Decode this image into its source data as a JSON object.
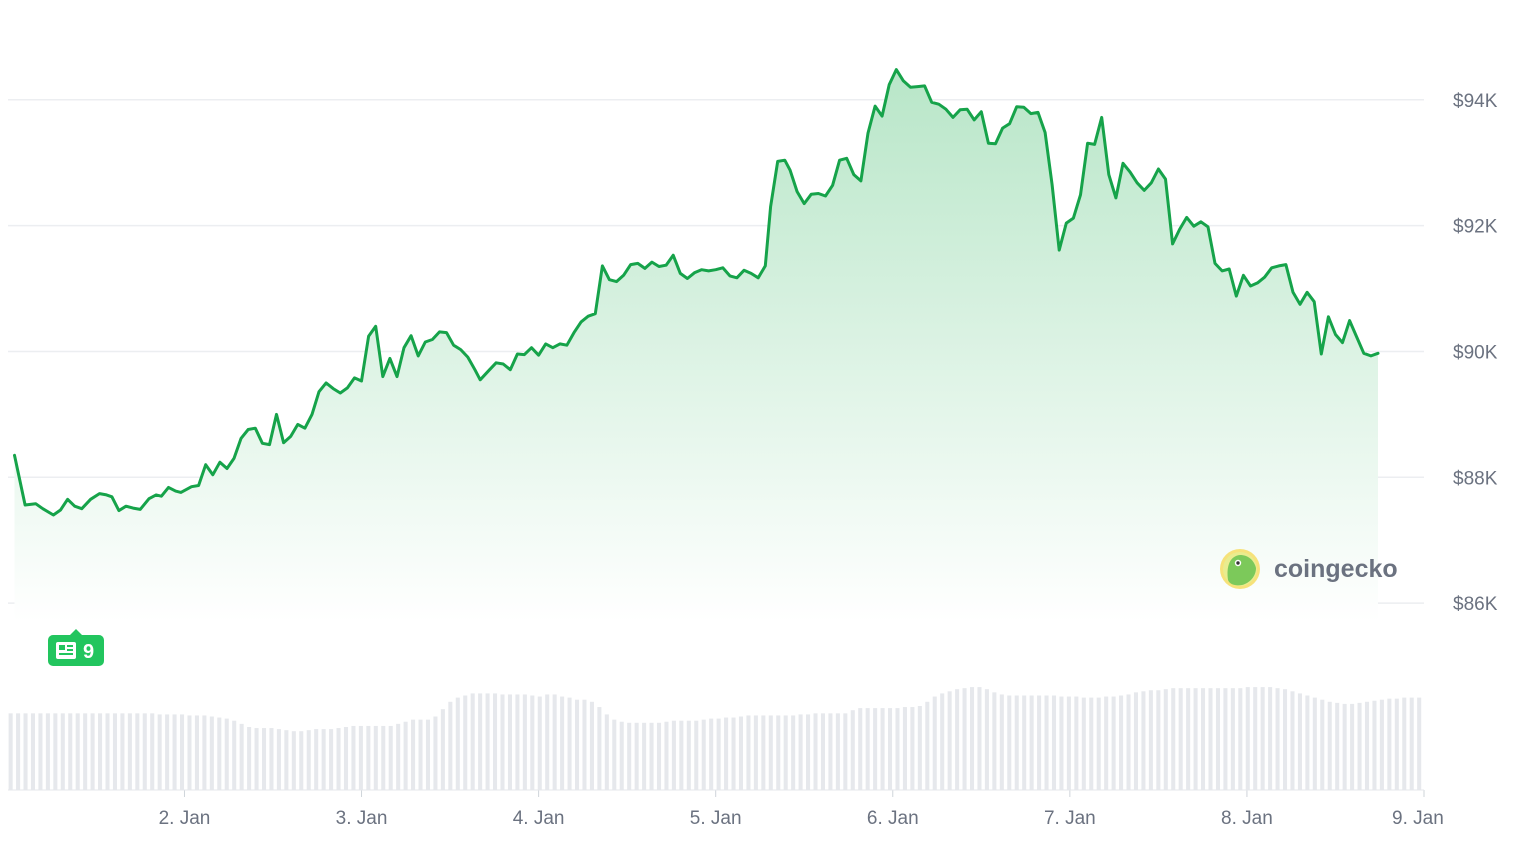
{
  "brand": {
    "name": "coingecko",
    "icon": "gecko-logo-icon"
  },
  "news_marker": {
    "icon": "newspaper-icon",
    "count": "9",
    "color": "#22c55e"
  },
  "colors": {
    "line": "#16a34a",
    "fill_top": "#b8e6c8",
    "fill_bottom": "#ffffff",
    "grid": "#eceef1",
    "volume": "#e6e8ec",
    "tick_text": "#6b7280"
  },
  "chart_data": {
    "type": "area",
    "title": "",
    "xlabel": "",
    "ylabel": "",
    "ylim": [
      85700,
      94950
    ],
    "y_ticks": [
      86000,
      88000,
      90000,
      92000,
      94000
    ],
    "y_tick_labels": [
      "$86K",
      "$88K",
      "$90K",
      "$92K",
      "$94K"
    ],
    "x_tick_labels": [
      "2. Jan",
      "3. Jan",
      "4. Jan",
      "5. Jan",
      "6. Jan",
      "7. Jan",
      "8. Jan",
      "9. Jan"
    ],
    "x_range_days": [
      "1. Jan 00:05",
      "9. Jan 00:00"
    ],
    "grid": true,
    "series": [
      {
        "x_unit": "days since 1. Jan 00:00",
        "points": [
          [
            0.04,
            88350
          ],
          [
            0.1,
            87560
          ],
          [
            0.16,
            87580
          ],
          [
            0.2,
            87500
          ],
          [
            0.26,
            87400
          ],
          [
            0.3,
            87480
          ],
          [
            0.34,
            87650
          ],
          [
            0.38,
            87540
          ],
          [
            0.42,
            87500
          ],
          [
            0.47,
            87650
          ],
          [
            0.52,
            87740
          ],
          [
            0.56,
            87720
          ],
          [
            0.59,
            87690
          ],
          [
            0.63,
            87470
          ],
          [
            0.67,
            87540
          ],
          [
            0.71,
            87510
          ],
          [
            0.75,
            87490
          ],
          [
            0.8,
            87660
          ],
          [
            0.84,
            87720
          ],
          [
            0.87,
            87700
          ],
          [
            0.91,
            87840
          ],
          [
            0.95,
            87780
          ],
          [
            0.98,
            87760
          ],
          [
            1.04,
            87850
          ],
          [
            1.08,
            87870
          ],
          [
            1.12,
            88200
          ],
          [
            1.16,
            88040
          ],
          [
            1.2,
            88240
          ],
          [
            1.24,
            88140
          ],
          [
            1.28,
            88300
          ],
          [
            1.32,
            88620
          ],
          [
            1.36,
            88760
          ],
          [
            1.4,
            88780
          ],
          [
            1.44,
            88540
          ],
          [
            1.48,
            88520
          ],
          [
            1.52,
            89000
          ],
          [
            1.56,
            88550
          ],
          [
            1.6,
            88650
          ],
          [
            1.64,
            88840
          ],
          [
            1.68,
            88780
          ],
          [
            1.72,
            89000
          ],
          [
            1.76,
            89360
          ],
          [
            1.8,
            89500
          ],
          [
            1.84,
            89410
          ],
          [
            1.88,
            89340
          ],
          [
            1.92,
            89420
          ],
          [
            1.96,
            89580
          ],
          [
            2.0,
            89530
          ],
          [
            2.04,
            90240
          ],
          [
            2.08,
            90400
          ],
          [
            2.12,
            89600
          ],
          [
            2.16,
            89890
          ],
          [
            2.2,
            89600
          ],
          [
            2.24,
            90060
          ],
          [
            2.28,
            90250
          ],
          [
            2.32,
            89930
          ],
          [
            2.36,
            90150
          ],
          [
            2.4,
            90190
          ],
          [
            2.44,
            90310
          ],
          [
            2.48,
            90300
          ],
          [
            2.52,
            90100
          ],
          [
            2.56,
            90030
          ],
          [
            2.6,
            89910
          ],
          [
            2.64,
            89710
          ],
          [
            2.67,
            89550
          ],
          [
            2.72,
            89700
          ],
          [
            2.76,
            89820
          ],
          [
            2.8,
            89800
          ],
          [
            2.84,
            89710
          ],
          [
            2.88,
            89960
          ],
          [
            2.92,
            89950
          ],
          [
            2.96,
            90060
          ],
          [
            3.0,
            89940
          ],
          [
            3.04,
            90120
          ],
          [
            3.08,
            90060
          ],
          [
            3.12,
            90120
          ],
          [
            3.16,
            90100
          ],
          [
            3.2,
            90300
          ],
          [
            3.24,
            90470
          ],
          [
            3.28,
            90560
          ],
          [
            3.32,
            90600
          ],
          [
            3.36,
            91360
          ],
          [
            3.4,
            91140
          ],
          [
            3.44,
            91110
          ],
          [
            3.48,
            91210
          ],
          [
            3.52,
            91380
          ],
          [
            3.56,
            91400
          ],
          [
            3.6,
            91320
          ],
          [
            3.64,
            91420
          ],
          [
            3.68,
            91350
          ],
          [
            3.72,
            91370
          ],
          [
            3.76,
            91530
          ],
          [
            3.8,
            91240
          ],
          [
            3.84,
            91160
          ],
          [
            3.88,
            91250
          ],
          [
            3.92,
            91300
          ],
          [
            3.96,
            91280
          ],
          [
            4.0,
            91300
          ],
          [
            4.04,
            91330
          ],
          [
            4.08,
            91200
          ],
          [
            4.12,
            91170
          ],
          [
            4.16,
            91290
          ],
          [
            4.2,
            91240
          ],
          [
            4.24,
            91170
          ],
          [
            4.28,
            91360
          ],
          [
            4.31,
            92300
          ],
          [
            4.35,
            93020
          ],
          [
            4.39,
            93040
          ],
          [
            4.42,
            92880
          ],
          [
            4.46,
            92540
          ],
          [
            4.5,
            92350
          ],
          [
            4.54,
            92500
          ],
          [
            4.58,
            92510
          ],
          [
            4.62,
            92470
          ],
          [
            4.66,
            92640
          ],
          [
            4.7,
            93040
          ],
          [
            4.74,
            93070
          ],
          [
            4.78,
            92810
          ],
          [
            4.82,
            92710
          ],
          [
            4.86,
            93470
          ],
          [
            4.9,
            93900
          ],
          [
            4.94,
            93740
          ],
          [
            4.98,
            94240
          ],
          [
            5.02,
            94480
          ],
          [
            5.06,
            94300
          ],
          [
            5.1,
            94200
          ],
          [
            5.14,
            94210
          ],
          [
            5.18,
            94220
          ],
          [
            5.22,
            93960
          ],
          [
            5.26,
            93930
          ],
          [
            5.3,
            93850
          ],
          [
            5.34,
            93720
          ],
          [
            5.38,
            93840
          ],
          [
            5.42,
            93850
          ],
          [
            5.46,
            93680
          ],
          [
            5.5,
            93810
          ],
          [
            5.54,
            93310
          ],
          [
            5.58,
            93300
          ],
          [
            5.62,
            93550
          ],
          [
            5.66,
            93620
          ],
          [
            5.7,
            93890
          ],
          [
            5.74,
            93880
          ],
          [
            5.78,
            93780
          ],
          [
            5.82,
            93800
          ],
          [
            5.86,
            93480
          ],
          [
            5.9,
            92650
          ],
          [
            5.94,
            91610
          ],
          [
            5.98,
            92040
          ],
          [
            6.02,
            92120
          ],
          [
            6.06,
            92490
          ],
          [
            6.1,
            93310
          ],
          [
            6.14,
            93290
          ],
          [
            6.18,
            93720
          ],
          [
            6.22,
            92810
          ],
          [
            6.26,
            92440
          ],
          [
            6.3,
            92990
          ],
          [
            6.34,
            92850
          ],
          [
            6.38,
            92680
          ],
          [
            6.42,
            92560
          ],
          [
            6.46,
            92680
          ],
          [
            6.5,
            92900
          ],
          [
            6.54,
            92740
          ],
          [
            6.58,
            91710
          ],
          [
            6.62,
            91940
          ],
          [
            6.66,
            92130
          ],
          [
            6.7,
            91990
          ],
          [
            6.74,
            92060
          ],
          [
            6.78,
            91980
          ],
          [
            6.82,
            91400
          ],
          [
            6.86,
            91280
          ],
          [
            6.9,
            91310
          ],
          [
            6.94,
            90880
          ],
          [
            6.98,
            91210
          ],
          [
            7.02,
            91040
          ],
          [
            7.06,
            91090
          ],
          [
            7.1,
            91180
          ],
          [
            7.14,
            91330
          ],
          [
            7.18,
            91360
          ],
          [
            7.22,
            91380
          ],
          [
            7.26,
            90940
          ],
          [
            7.3,
            90750
          ],
          [
            7.34,
            90940
          ],
          [
            7.38,
            90790
          ],
          [
            7.42,
            89960
          ],
          [
            7.46,
            90550
          ],
          [
            7.5,
            90270
          ],
          [
            7.54,
            90140
          ],
          [
            7.58,
            90490
          ],
          [
            7.62,
            90230
          ],
          [
            7.66,
            89970
          ],
          [
            7.7,
            89930
          ],
          [
            7.74,
            89970
          ]
        ]
      },
      {
        "name": "volume",
        "note": "relative trading volume per bar",
        "values": [
          0.73,
          0.73,
          0.73,
          0.73,
          0.73,
          0.73,
          0.73,
          0.73,
          0.73,
          0.73,
          0.73,
          0.73,
          0.73,
          0.73,
          0.73,
          0.73,
          0.73,
          0.73,
          0.73,
          0.73,
          0.72,
          0.72,
          0.72,
          0.72,
          0.71,
          0.71,
          0.71,
          0.7,
          0.69,
          0.68,
          0.66,
          0.63,
          0.6,
          0.59,
          0.59,
          0.59,
          0.58,
          0.57,
          0.56,
          0.56,
          0.57,
          0.58,
          0.58,
          0.58,
          0.59,
          0.6,
          0.61,
          0.61,
          0.61,
          0.61,
          0.61,
          0.61,
          0.63,
          0.65,
          0.67,
          0.67,
          0.67,
          0.7,
          0.77,
          0.84,
          0.88,
          0.9,
          0.92,
          0.92,
          0.92,
          0.92,
          0.91,
          0.91,
          0.91,
          0.91,
          0.9,
          0.89,
          0.91,
          0.91,
          0.89,
          0.88,
          0.86,
          0.86,
          0.84,
          0.79,
          0.72,
          0.67,
          0.65,
          0.64,
          0.64,
          0.64,
          0.64,
          0.64,
          0.65,
          0.66,
          0.66,
          0.66,
          0.66,
          0.67,
          0.68,
          0.68,
          0.69,
          0.69,
          0.7,
          0.71,
          0.71,
          0.71,
          0.71,
          0.71,
          0.71,
          0.71,
          0.72,
          0.72,
          0.73,
          0.73,
          0.73,
          0.73,
          0.73,
          0.76,
          0.78,
          0.78,
          0.78,
          0.78,
          0.78,
          0.78,
          0.79,
          0.79,
          0.8,
          0.84,
          0.89,
          0.92,
          0.94,
          0.96,
          0.97,
          0.98,
          0.98,
          0.96,
          0.93,
          0.91,
          0.9,
          0.9,
          0.9,
          0.9,
          0.9,
          0.9,
          0.9,
          0.89,
          0.89,
          0.89,
          0.88,
          0.88,
          0.88,
          0.89,
          0.89,
          0.9,
          0.91,
          0.93,
          0.94,
          0.95,
          0.95,
          0.96,
          0.97,
          0.97,
          0.97,
          0.97,
          0.97,
          0.97,
          0.97,
          0.97,
          0.97,
          0.97,
          0.98,
          0.98,
          0.98,
          0.98,
          0.97,
          0.96,
          0.94,
          0.92,
          0.9,
          0.88,
          0.86,
          0.84,
          0.83,
          0.82,
          0.82,
          0.83,
          0.84,
          0.85,
          0.86,
          0.87,
          0.87,
          0.88,
          0.88,
          0.88
        ]
      }
    ]
  }
}
